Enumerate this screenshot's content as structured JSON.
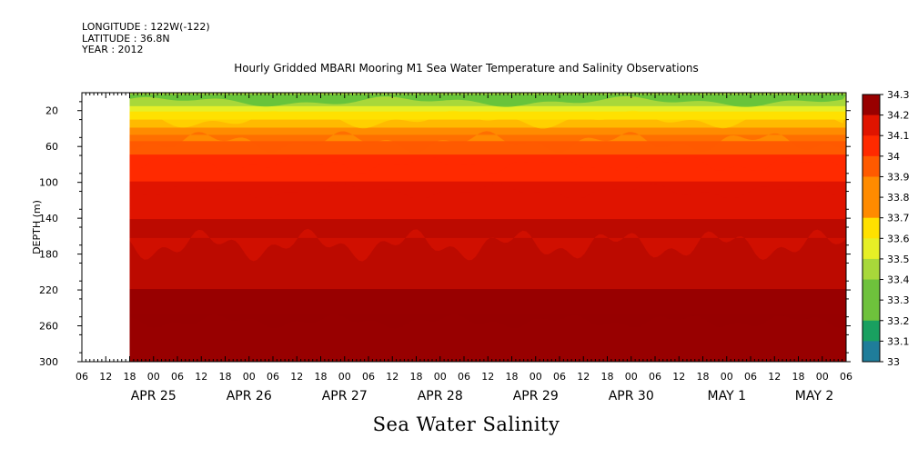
{
  "header": {
    "longitude": "LONGITUDE : 122W(-122)",
    "latitude": "LATITUDE : 36.8N",
    "year": "YEAR : 2012"
  },
  "title": "Hourly Gridded MBARI Mooring M1 Sea Water Temperature and Salinity Observations",
  "footer_label": "Sea Water Salinity",
  "chart_data": {
    "type": "heatmap",
    "title": "Hourly Gridded MBARI Mooring M1 Sea Water Temperature and Salinity Observations",
    "xlabel": "",
    "ylabel": "DEPTH (m)",
    "colorbar_label": "Sea Water Salinity",
    "y_axis": {
      "range": [
        0,
        300
      ],
      "inverted": true,
      "ticks": [
        20,
        60,
        100,
        140,
        180,
        220,
        260,
        300
      ]
    },
    "x_axis": {
      "range_hours": [
        0,
        192
      ],
      "hour_ticks": [
        "06",
        "12",
        "18",
        "00",
        "06",
        "12",
        "18",
        "00",
        "06",
        "12",
        "18",
        "00",
        "06",
        "12",
        "18",
        "00",
        "06",
        "12",
        "18",
        "00",
        "06",
        "12",
        "18",
        "00",
        "06",
        "12",
        "18",
        "00",
        "06",
        "12",
        "18",
        "00",
        "06"
      ],
      "day_labels": [
        "APR 25",
        "APR 26",
        "APR 27",
        "APR 28",
        "APR 29",
        "APR 30",
        "MAY 1",
        "MAY 2"
      ],
      "data_start_hour": 12
    },
    "colorbar": {
      "levels": [
        33,
        33.1,
        33.2,
        33.3,
        33.4,
        33.5,
        33.6,
        33.7,
        33.8,
        33.9,
        34,
        34.1,
        34.2,
        34.3
      ],
      "tick_labels": [
        "33",
        "33.1",
        "33.2",
        "33.3",
        "33.4",
        "33.5",
        "33.6",
        "33.7",
        "33.8",
        "33.9",
        "34",
        "34.1",
        "34.2",
        "34.3"
      ],
      "colors": [
        "#d01ff0",
        "#9b33ee",
        "#6a3fe6",
        "#3a58d0",
        "#1f7d9a",
        "#19a060",
        "#33b43c",
        "#6ec23c",
        "#a8d83a",
        "#e6ef26",
        "#ffe100",
        "#ffba00",
        "#ff8b00",
        "#ff5a00",
        "#ff2a00",
        "#e01400",
        "#bc0a00",
        "#980000"
      ]
    },
    "salinity_profile": [
      {
        "depth": 8,
        "salinity": 33.35
      },
      {
        "depth": 20,
        "salinity": 33.55
      },
      {
        "depth": 40,
        "salinity": 33.75
      },
      {
        "depth": 60,
        "salinity": 33.9
      },
      {
        "depth": 80,
        "salinity": 34.0
      },
      {
        "depth": 100,
        "salinity": 34.05
      },
      {
        "depth": 120,
        "salinity": 34.1
      },
      {
        "depth": 140,
        "salinity": 34.15
      },
      {
        "depth": 180,
        "salinity": 34.2
      },
      {
        "depth": 220,
        "salinity": 34.25
      },
      {
        "depth": 260,
        "salinity": 34.3
      },
      {
        "depth": 300,
        "salinity": 34.27
      }
    ]
  }
}
